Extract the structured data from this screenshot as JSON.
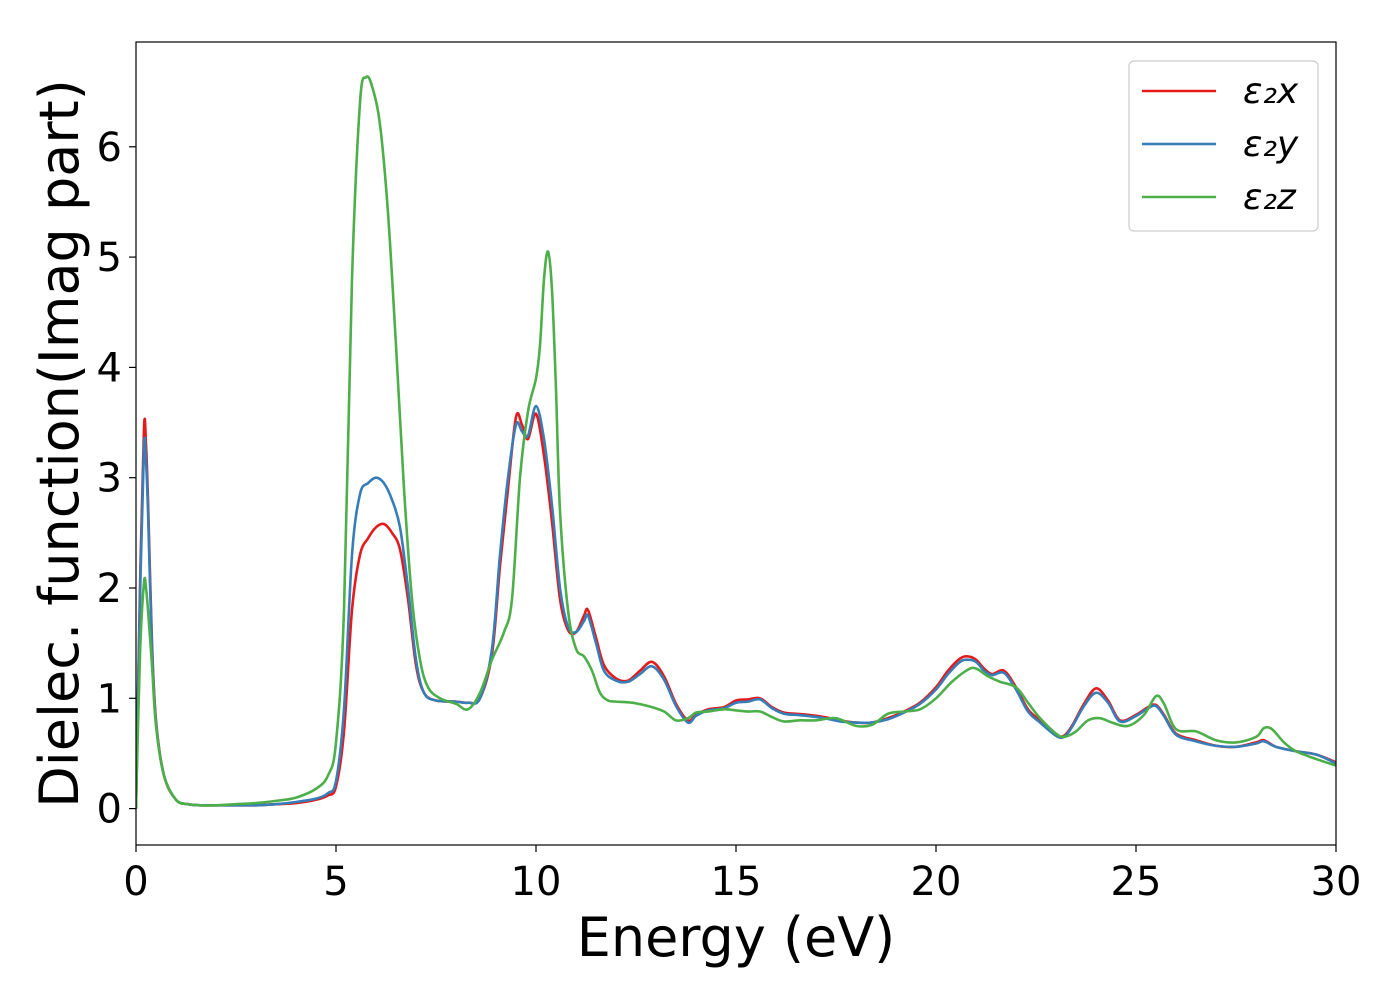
{
  "chart_data": {
    "type": "line",
    "title": "",
    "xlabel": "Energy (eV)",
    "ylabel": "Dielec. function(Imag part)",
    "xlim": [
      0,
      30
    ],
    "ylim": [
      -0.33,
      6.95
    ],
    "xticks": [
      "0",
      "5",
      "10",
      "15",
      "20",
      "25",
      "30"
    ],
    "yticks": [
      "0",
      "1",
      "2",
      "3",
      "4",
      "5",
      "6"
    ],
    "grid": false,
    "legend_position": "top-right",
    "series": [
      {
        "name": "ε₂x",
        "color": "#e41a1c",
        "x": [
          0,
          0.1,
          0.2,
          0.25,
          0.3,
          0.4,
          0.5,
          0.7,
          1.0,
          1.3,
          1.6,
          2,
          2.5,
          3,
          3.5,
          4,
          4.5,
          4.8,
          5.0,
          5.2,
          5.4,
          5.6,
          5.8,
          6.0,
          6.2,
          6.4,
          6.6,
          6.8,
          7.0,
          7.2,
          7.5,
          8.0,
          8.3,
          8.6,
          8.9,
          9.1,
          9.3,
          9.5,
          9.65,
          9.8,
          10.0,
          10.2,
          10.4,
          10.6,
          10.8,
          11.0,
          11.2,
          11.3,
          11.5,
          11.7,
          12.0,
          12.3,
          12.6,
          12.9,
          13.2,
          13.5,
          13.8,
          14.0,
          14.3,
          14.7,
          15.0,
          15.3,
          15.6,
          15.9,
          16.2,
          16.5,
          16.8,
          17.2,
          17.6,
          18.0,
          18.4,
          18.8,
          19.2,
          19.6,
          20.0,
          20.3,
          20.6,
          20.8,
          21.0,
          21.2,
          21.4,
          21.7,
          22.0,
          22.3,
          22.6,
          23.0,
          23.2,
          23.4,
          23.7,
          24.0,
          24.3,
          24.6,
          25.0,
          25.3,
          25.5,
          25.7,
          26.0,
          26.5,
          27.0,
          27.5,
          28.0,
          28.2,
          28.5,
          29.0,
          29.5,
          30.0
        ],
        "y": [
          0.0,
          2.0,
          3.45,
          3.3,
          2.8,
          1.5,
          0.8,
          0.3,
          0.08,
          0.04,
          0.03,
          0.03,
          0.03,
          0.03,
          0.04,
          0.05,
          0.08,
          0.12,
          0.2,
          0.7,
          1.8,
          2.3,
          2.45,
          2.55,
          2.58,
          2.5,
          2.35,
          1.9,
          1.3,
          1.05,
          0.98,
          0.97,
          0.96,
          1.0,
          1.4,
          2.2,
          2.9,
          3.55,
          3.48,
          3.35,
          3.58,
          3.2,
          2.6,
          1.9,
          1.62,
          1.6,
          1.75,
          1.8,
          1.55,
          1.3,
          1.18,
          1.16,
          1.25,
          1.33,
          1.2,
          0.95,
          0.8,
          0.85,
          0.9,
          0.92,
          0.98,
          0.99,
          1.0,
          0.92,
          0.87,
          0.86,
          0.85,
          0.83,
          0.8,
          0.78,
          0.78,
          0.82,
          0.88,
          0.96,
          1.1,
          1.25,
          1.36,
          1.38,
          1.35,
          1.27,
          1.22,
          1.25,
          1.1,
          0.9,
          0.8,
          0.67,
          0.66,
          0.75,
          0.95,
          1.09,
          0.98,
          0.8,
          0.85,
          0.92,
          0.94,
          0.85,
          0.68,
          0.62,
          0.57,
          0.56,
          0.6,
          0.62,
          0.56,
          0.52,
          0.49,
          0.42
        ]
      },
      {
        "name": "ε₂y",
        "color": "#377eb8",
        "x": [
          0,
          0.1,
          0.2,
          0.25,
          0.3,
          0.4,
          0.5,
          0.7,
          1.0,
          1.3,
          1.6,
          2,
          2.5,
          3,
          3.5,
          4,
          4.5,
          4.8,
          5.0,
          5.2,
          5.4,
          5.6,
          5.8,
          6.0,
          6.2,
          6.4,
          6.6,
          6.8,
          7.0,
          7.2,
          7.5,
          8.0,
          8.3,
          8.6,
          8.9,
          9.1,
          9.3,
          9.5,
          9.65,
          9.8,
          10.0,
          10.2,
          10.4,
          10.6,
          10.8,
          11.0,
          11.2,
          11.3,
          11.5,
          11.7,
          12.0,
          12.3,
          12.6,
          12.9,
          13.2,
          13.5,
          13.8,
          14.0,
          14.3,
          14.7,
          15.0,
          15.3,
          15.6,
          15.9,
          16.2,
          16.5,
          16.8,
          17.2,
          17.6,
          18.0,
          18.4,
          18.8,
          19.2,
          19.6,
          20.0,
          20.3,
          20.6,
          20.8,
          21.0,
          21.2,
          21.4,
          21.7,
          22.0,
          22.3,
          22.6,
          23.0,
          23.2,
          23.4,
          23.7,
          24.0,
          24.3,
          24.6,
          25.0,
          25.3,
          25.5,
          25.7,
          26.0,
          26.5,
          27.0,
          27.5,
          28.0,
          28.2,
          28.5,
          29.0,
          29.5,
          30.0
        ],
        "y": [
          0.0,
          1.9,
          3.28,
          3.15,
          2.7,
          1.45,
          0.78,
          0.3,
          0.08,
          0.04,
          0.03,
          0.03,
          0.03,
          0.03,
          0.04,
          0.06,
          0.09,
          0.14,
          0.25,
          0.9,
          2.3,
          2.85,
          2.95,
          3.0,
          2.95,
          2.8,
          2.55,
          2.0,
          1.35,
          1.05,
          0.98,
          0.97,
          0.96,
          1.0,
          1.45,
          2.3,
          3.0,
          3.48,
          3.42,
          3.38,
          3.65,
          3.35,
          2.75,
          2.0,
          1.65,
          1.6,
          1.7,
          1.75,
          1.5,
          1.25,
          1.16,
          1.15,
          1.22,
          1.29,
          1.17,
          0.93,
          0.78,
          0.84,
          0.89,
          0.91,
          0.96,
          0.97,
          0.99,
          0.91,
          0.86,
          0.85,
          0.84,
          0.82,
          0.79,
          0.78,
          0.78,
          0.81,
          0.87,
          0.95,
          1.08,
          1.22,
          1.33,
          1.35,
          1.33,
          1.25,
          1.21,
          1.23,
          1.08,
          0.88,
          0.78,
          0.66,
          0.65,
          0.74,
          0.93,
          1.05,
          0.96,
          0.79,
          0.84,
          0.91,
          0.93,
          0.84,
          0.67,
          0.61,
          0.57,
          0.56,
          0.59,
          0.61,
          0.56,
          0.52,
          0.49,
          0.41
        ]
      },
      {
        "name": "ε₂z",
        "color": "#4daf4a",
        "x": [
          0,
          0.1,
          0.2,
          0.25,
          0.3,
          0.4,
          0.5,
          0.7,
          1.0,
          1.3,
          1.6,
          2,
          2.5,
          3,
          3.5,
          4,
          4.5,
          4.8,
          5.0,
          5.2,
          5.4,
          5.6,
          5.75,
          5.9,
          6.1,
          6.3,
          6.5,
          6.7,
          6.9,
          7.1,
          7.3,
          7.6,
          8.0,
          8.3,
          8.6,
          8.9,
          9.2,
          9.4,
          9.6,
          9.8,
          10.0,
          10.1,
          10.2,
          10.3,
          10.4,
          10.5,
          10.6,
          10.8,
          11.0,
          11.2,
          11.4,
          11.6,
          11.8,
          12.0,
          12.4,
          12.8,
          13.2,
          13.5,
          13.8,
          14.0,
          14.3,
          14.7,
          15.0,
          15.3,
          15.6,
          15.9,
          16.2,
          16.6,
          17.0,
          17.5,
          18.0,
          18.4,
          18.8,
          19.2,
          19.6,
          20.0,
          20.4,
          20.8,
          21.0,
          21.3,
          21.6,
          22.0,
          22.3,
          22.6,
          23.0,
          23.2,
          23.5,
          23.8,
          24.1,
          24.4,
          24.8,
          25.2,
          25.5,
          25.7,
          26.0,
          26.5,
          27.0,
          27.5,
          28.0,
          28.2,
          28.4,
          28.7,
          29.0,
          29.5,
          30.0
        ],
        "y": [
          0.0,
          1.4,
          2.05,
          2.0,
          1.8,
          1.3,
          0.75,
          0.3,
          0.08,
          0.04,
          0.03,
          0.03,
          0.04,
          0.05,
          0.07,
          0.1,
          0.18,
          0.3,
          0.6,
          1.8,
          4.8,
          6.4,
          6.63,
          6.55,
          6.2,
          5.4,
          4.2,
          2.9,
          1.9,
          1.35,
          1.1,
          1.0,
          0.95,
          0.9,
          1.05,
          1.35,
          1.6,
          1.9,
          3.0,
          3.6,
          3.9,
          4.2,
          4.8,
          5.05,
          4.7,
          3.8,
          2.7,
          1.8,
          1.45,
          1.38,
          1.25,
          1.05,
          0.98,
          0.97,
          0.96,
          0.93,
          0.88,
          0.8,
          0.82,
          0.87,
          0.88,
          0.9,
          0.89,
          0.88,
          0.88,
          0.83,
          0.79,
          0.8,
          0.8,
          0.82,
          0.75,
          0.76,
          0.86,
          0.88,
          0.9,
          1.0,
          1.15,
          1.26,
          1.27,
          1.2,
          1.15,
          1.1,
          0.96,
          0.82,
          0.68,
          0.65,
          0.7,
          0.8,
          0.82,
          0.78,
          0.75,
          0.85,
          1.02,
          0.95,
          0.72,
          0.7,
          0.62,
          0.6,
          0.65,
          0.73,
          0.72,
          0.6,
          0.52,
          0.45,
          0.39
        ]
      }
    ]
  }
}
